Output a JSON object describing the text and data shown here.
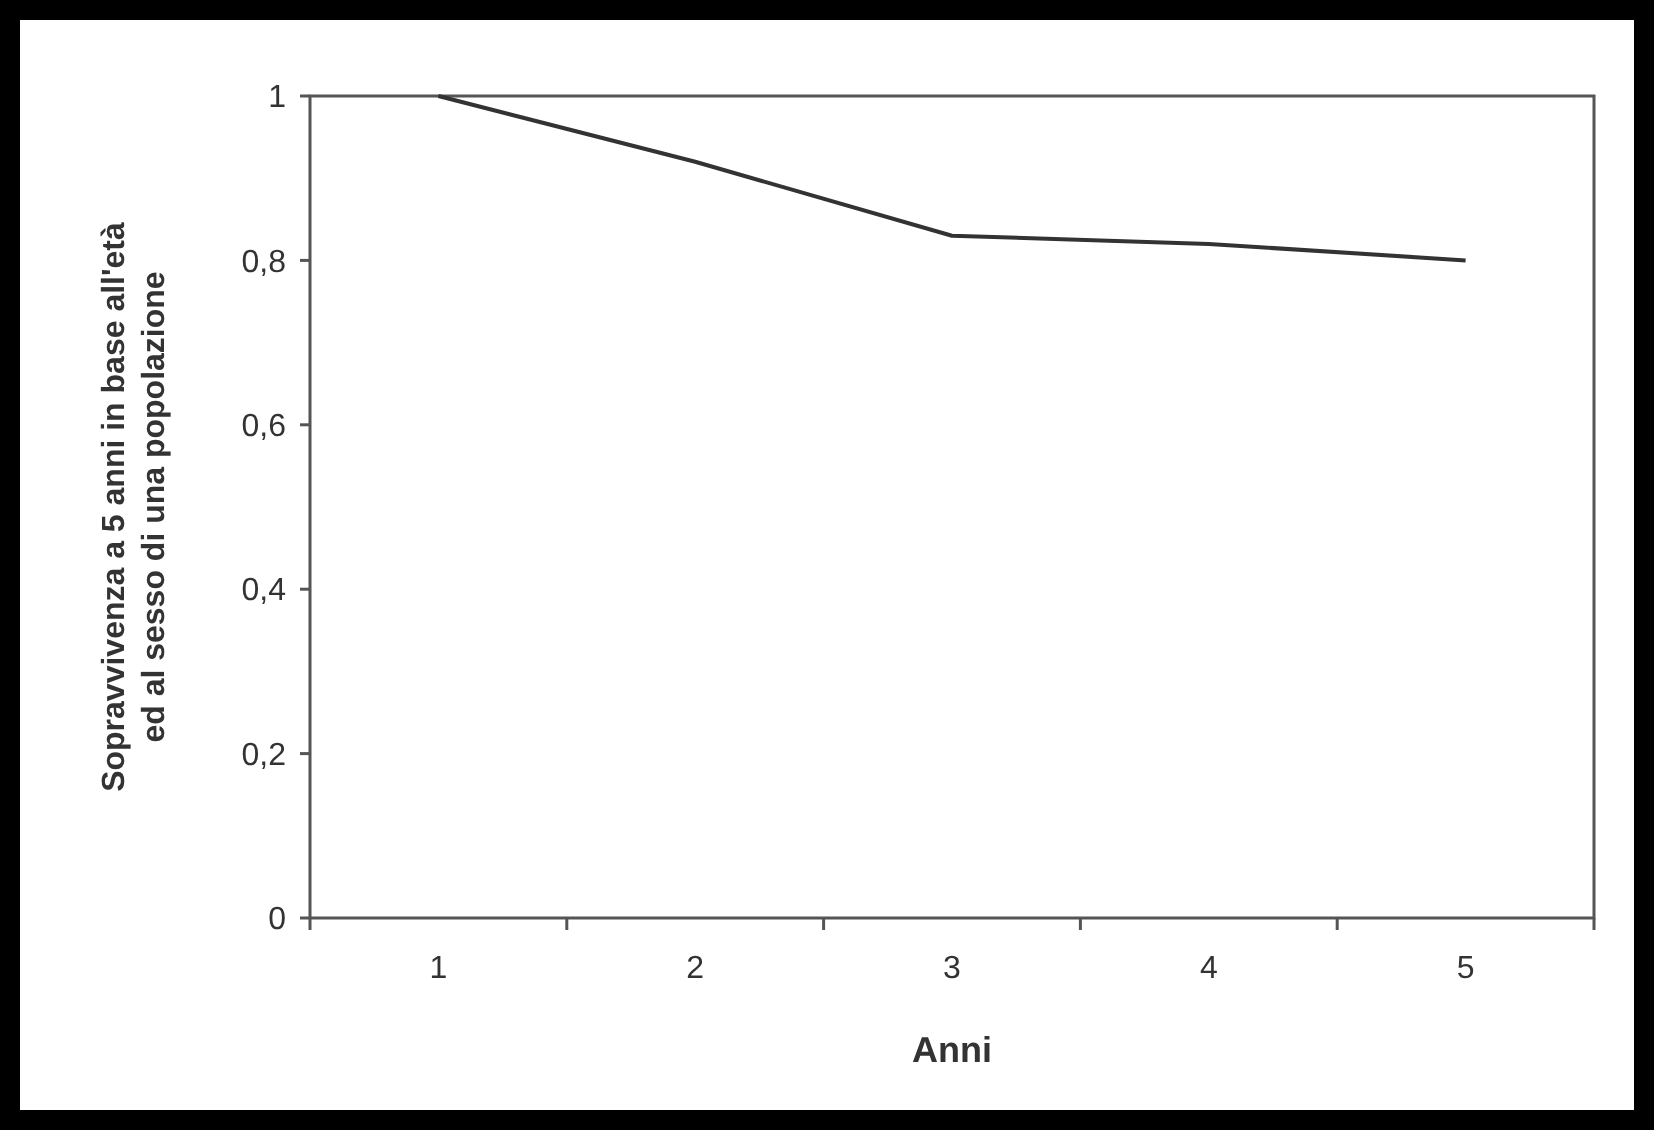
{
  "chart_data": {
    "type": "line",
    "xlabel": "Anni",
    "ylabel": "Sopravvivenza a 5 anni in base all'età\ned al sesso di una popolazione",
    "categories": [
      "1",
      "2",
      "3",
      "4",
      "5"
    ],
    "series": [
      {
        "color": "#333333",
        "values": [
          1.0,
          0.92,
          0.83,
          0.82,
          0.8
        ]
      }
    ],
    "ylim": [
      0,
      1
    ],
    "yticks": [
      0,
      {
        "value": 0.2,
        "label": "0,2"
      },
      {
        "value": 0.4,
        "label": "0,4"
      },
      {
        "value": 0.6,
        "label": "0,6"
      },
      {
        "value": 0.8,
        "label": "0,8"
      },
      1
    ],
    "grid": false,
    "marker": "none",
    "line_style": "solid"
  }
}
